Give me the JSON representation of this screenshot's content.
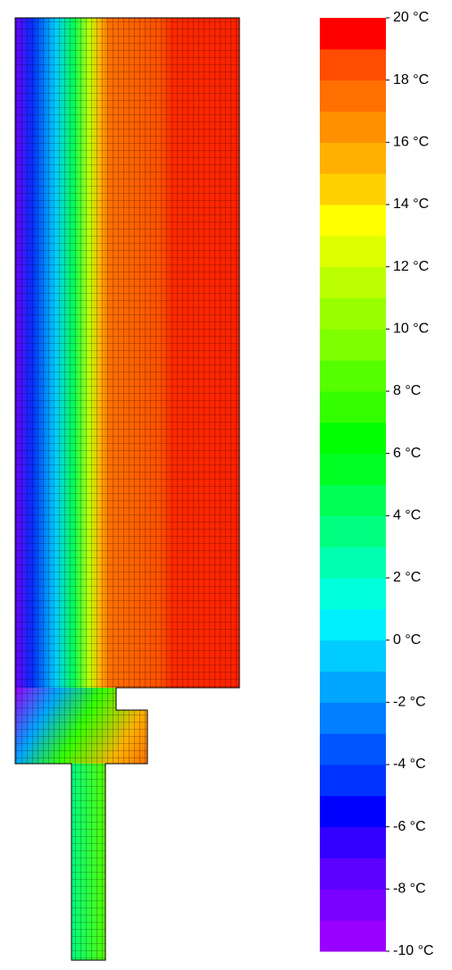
{
  "chart_data": {
    "type": "contour",
    "colorbar": {
      "levels": [
        -10,
        -9,
        -8,
        -7,
        -6,
        -5,
        -4,
        -3,
        -2,
        -1,
        0,
        1,
        2,
        3,
        4,
        5,
        6,
        7,
        8,
        9,
        10,
        11,
        12,
        13,
        14,
        15,
        16,
        17,
        18,
        19,
        20
      ],
      "colors": [
        "#9900ff",
        "#7a00ff",
        "#5c00ff",
        "#3300ff",
        "#0000ff",
        "#0033ff",
        "#0055ff",
        "#0080ff",
        "#00a6ff",
        "#00ccff",
        "#00f0ff",
        "#00ffdd",
        "#00ffb0",
        "#00ff80",
        "#00ff55",
        "#00ff22",
        "#00ff00",
        "#33ff00",
        "#55ff00",
        "#80ff00",
        "#99ff00",
        "#bbff00",
        "#ddff00",
        "#ffff00",
        "#ffd000",
        "#ffb000",
        "#ff9000",
        "#ff7000",
        "#ff4d00",
        "#ff0000"
      ],
      "ticks": [
        {
          "value": -10,
          "label": "-10 °C"
        },
        {
          "value": -8,
          "label": "-8 °C"
        },
        {
          "value": -6,
          "label": "-6 °C"
        },
        {
          "value": -4,
          "label": "-4 °C"
        },
        {
          "value": -2,
          "label": "-2 °C"
        },
        {
          "value": 0,
          "label": "0 °C"
        },
        {
          "value": 2,
          "label": "2 °C"
        },
        {
          "value": 4,
          "label": "4 °C"
        },
        {
          "value": 6,
          "label": "6 °C"
        },
        {
          "value": 8,
          "label": "8 °C"
        },
        {
          "value": 10,
          "label": "10 °C"
        },
        {
          "value": 12,
          "label": "12 °C"
        },
        {
          "value": 14,
          "label": "14 °C"
        },
        {
          "value": 16,
          "label": "16 °C"
        },
        {
          "value": 18,
          "label": "18 °C"
        },
        {
          "value": 20,
          "label": "20 °C"
        }
      ]
    }
  }
}
